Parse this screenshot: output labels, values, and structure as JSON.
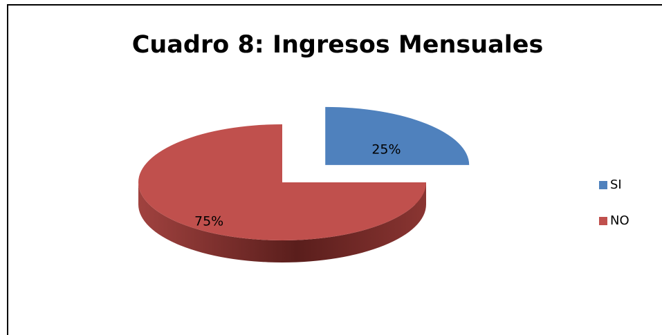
{
  "chart_data": {
    "type": "pie",
    "title": "Cuadro 8: Ingresos Mensuales",
    "categories": [
      "SI",
      "NO"
    ],
    "values": [
      25,
      75
    ],
    "value_labels": [
      "25%",
      "75%"
    ],
    "colors": [
      "#4f81bd",
      "#c0504d"
    ],
    "legend": "right"
  }
}
